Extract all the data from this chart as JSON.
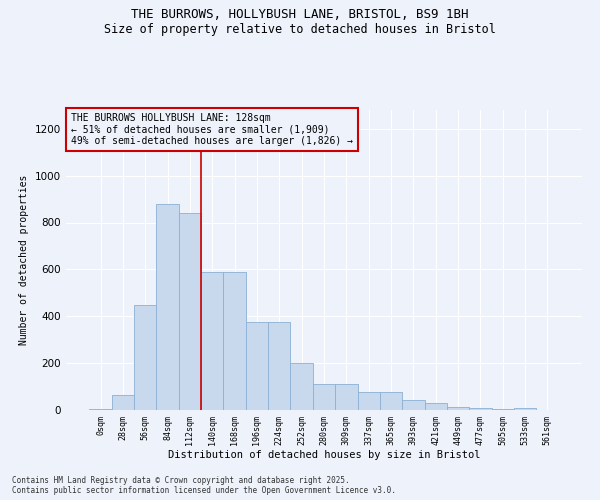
{
  "title_line1": "THE BURROWS, HOLLYBUSH LANE, BRISTOL, BS9 1BH",
  "title_line2": "Size of property relative to detached houses in Bristol",
  "xlabel": "Distribution of detached houses by size in Bristol",
  "ylabel": "Number of detached properties",
  "bar_color": "#c8d9ee",
  "bar_edge_color": "#8ab0d4",
  "background_color": "#eef2fb",
  "grid_color": "#ffffff",
  "annotation_box_color": "#cc0000",
  "property_line_color": "#cc0000",
  "categories": [
    "0sqm",
    "28sqm",
    "56sqm",
    "84sqm",
    "112sqm",
    "140sqm",
    "168sqm",
    "196sqm",
    "224sqm",
    "252sqm",
    "280sqm",
    "309sqm",
    "337sqm",
    "365sqm",
    "393sqm",
    "421sqm",
    "449sqm",
    "477sqm",
    "505sqm",
    "533sqm",
    "561sqm"
  ],
  "values": [
    5,
    62,
    450,
    880,
    840,
    590,
    590,
    375,
    375,
    200,
    113,
    113,
    75,
    75,
    42,
    32,
    13,
    8,
    5,
    8,
    2
  ],
  "property_line_x": 4.5,
  "ylim": [
    0,
    1280
  ],
  "yticks": [
    0,
    200,
    400,
    600,
    800,
    1000,
    1200
  ],
  "annotation_text": "THE BURROWS HOLLYBUSH LANE: 128sqm\n← 51% of detached houses are smaller (1,909)\n49% of semi-detached houses are larger (1,826) →",
  "footer_line1": "Contains HM Land Registry data © Crown copyright and database right 2025.",
  "footer_line2": "Contains public sector information licensed under the Open Government Licence v3.0."
}
